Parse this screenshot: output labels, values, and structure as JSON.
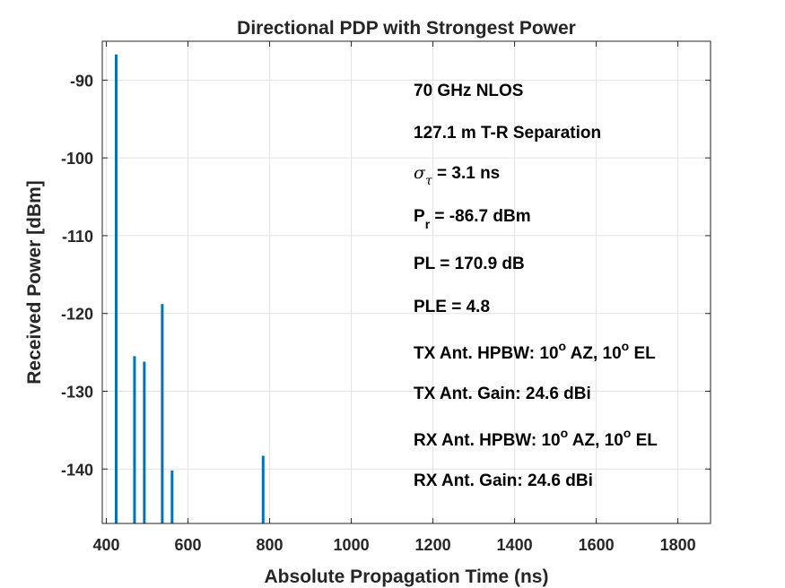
{
  "chart_data": {
    "type": "bar",
    "title": "Directional PDP with Strongest Power",
    "xlabel": "Absolute Propagation Time (ns)",
    "ylabel": "Received Power [dBm]",
    "xlim": [
      390,
      1880
    ],
    "ylim": [
      -147,
      -85
    ],
    "xticks": [
      400,
      600,
      800,
      1000,
      1200,
      1400,
      1600,
      1800
    ],
    "yticks": [
      -90,
      -100,
      -110,
      -120,
      -130,
      -140
    ],
    "grid": true,
    "bar_color": "#0072BD",
    "x": [
      424,
      469,
      493,
      537,
      561,
      784
    ],
    "values": [
      -86.7,
      -125.5,
      -126.2,
      -118.8,
      -140.2,
      -138.3
    ],
    "annotations": {
      "freq": "70 GHz NLOS",
      "separation": "127.1 m T-R Separation",
      "sigma_sym": "σ",
      "sigma_sub": "τ",
      "sigma_val": " = 3.1 ns",
      "pr_main": "P",
      "pr_sub": "r",
      "pr_val": " = -86.7 dBm",
      "pl": "PL = 170.9 dB",
      "ple": "PLE = 4.8",
      "tx_hpbw_a": "TX Ant. HPBW: 10",
      "tx_hpbw_b": " AZ, 10",
      "tx_hpbw_c": " EL",
      "tx_gain": "TX Ant. Gain: 24.6 dBi",
      "rx_hpbw_a": "RX Ant. HPBW: 10",
      "rx_hpbw_b": " AZ, 10",
      "rx_hpbw_c": " EL",
      "rx_gain": "RX Ant. Gain: 24.6 dBi",
      "degree_sup": "o"
    }
  }
}
